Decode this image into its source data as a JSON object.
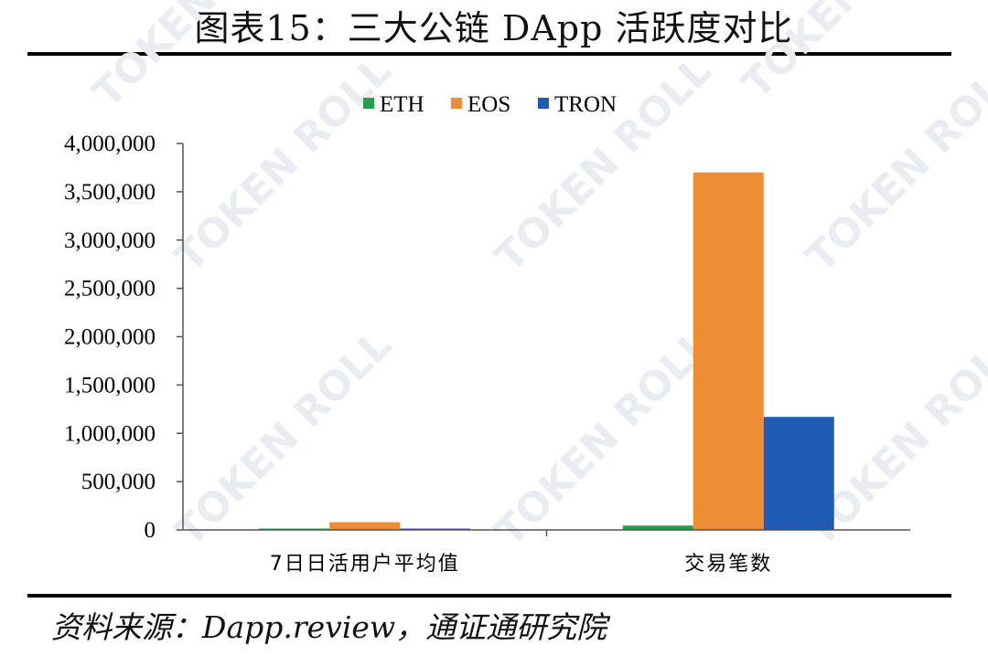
{
  "title": "图表15：三大公链 DApp 活跃度对比",
  "source": "资料来源：Dapp.review，通证通研究院",
  "watermark": "TOKEN ROLL",
  "chart_data": {
    "type": "bar",
    "categories": [
      "7日日活用户平均值",
      "交易笔数"
    ],
    "series": [
      {
        "name": "ETH",
        "color": "#21a04a",
        "values": [
          8000,
          45000
        ]
      },
      {
        "name": "EOS",
        "color": "#ef8c36",
        "values": [
          80000,
          3700000
        ]
      },
      {
        "name": "TRON",
        "color": "#1f5bb5",
        "values": [
          12000,
          1170000
        ]
      }
    ],
    "ylim": [
      0,
      4000000
    ],
    "yticks": [
      0,
      500000,
      1000000,
      1500000,
      2000000,
      2500000,
      3000000,
      3500000,
      4000000
    ],
    "ytick_labels": [
      "0",
      "500,000",
      "1,000,000",
      "1,500,000",
      "2,000,000",
      "2,500,000",
      "3,000,000",
      "3,500,000",
      "4,000,000"
    ],
    "legend_position": "top-center",
    "grid": false
  }
}
